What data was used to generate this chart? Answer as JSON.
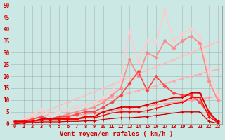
{
  "xlabel": "Vent moyen/en rafales ( km/h )",
  "bg_color": "#cce8e4",
  "grid_color": "#999999",
  "x": [
    0,
    1,
    2,
    3,
    4,
    5,
    6,
    7,
    8,
    9,
    10,
    11,
    12,
    13,
    14,
    15,
    16,
    17,
    18,
    19,
    20,
    21,
    22,
    23
  ],
  "xlim": [
    -0.5,
    23.5
  ],
  "ylim": [
    0,
    50
  ],
  "yticks": [
    0,
    5,
    10,
    15,
    20,
    25,
    30,
    35,
    40,
    45,
    50
  ],
  "lines": [
    {
      "color": "#ffaaaa",
      "lw": 0.9,
      "marker": "D",
      "ms": 2.0,
      "mew": 0.5,
      "y": [
        0,
        1,
        2,
        3,
        4,
        5,
        6,
        7,
        8,
        9,
        10,
        11,
        12,
        13,
        14,
        15,
        16,
        17,
        18,
        19,
        20,
        21,
        22,
        23
      ]
    },
    {
      "color": "#ffbbbb",
      "lw": 0.9,
      "marker": "D",
      "ms": 2.0,
      "mew": 0.5,
      "y": [
        0,
        1.5,
        3,
        4.5,
        6,
        7.5,
        9,
        10.5,
        12,
        13.5,
        15,
        16.5,
        18,
        19.5,
        21,
        22.5,
        24,
        25.5,
        27,
        28.5,
        30,
        31.5,
        33,
        34.5
      ]
    },
    {
      "color": "#ff9999",
      "lw": 0.9,
      "marker": "D",
      "ms": 2.0,
      "mew": 0.5,
      "y": [
        0,
        0.5,
        1,
        1.5,
        2,
        2.5,
        3,
        3.5,
        4,
        4.5,
        5,
        5.5,
        6,
        6.5,
        7,
        7.5,
        8,
        8.5,
        9,
        9.5,
        10,
        10.5,
        11,
        11.5
      ]
    },
    {
      "color": "#ffcccc",
      "lw": 1.2,
      "marker": "D",
      "ms": 2.5,
      "mew": 0.6,
      "y": [
        0,
        2,
        4,
        6,
        4,
        5,
        6,
        7,
        8,
        9,
        11,
        14,
        18,
        39,
        26,
        35,
        34,
        48,
        35,
        38,
        40,
        37,
        22,
        12
      ]
    },
    {
      "color": "#ff8888",
      "lw": 1.2,
      "marker": "D",
      "ms": 2.5,
      "mew": 0.6,
      "y": [
        0,
        1,
        2,
        3,
        2,
        3,
        4,
        5,
        6,
        7,
        9,
        12,
        15,
        27,
        20,
        30,
        28,
        35,
        32,
        35,
        37,
        34,
        18,
        10
      ]
    },
    {
      "color": "#ff4444",
      "lw": 1.2,
      "marker": "D",
      "ms": 2.5,
      "mew": 0.6,
      "y": [
        1,
        1,
        2,
        3,
        2,
        3,
        3,
        4,
        5,
        5,
        7,
        9,
        12,
        17,
        22,
        14,
        20,
        16,
        13,
        12,
        12,
        9,
        4,
        1
      ]
    },
    {
      "color": "#dd0000",
      "lw": 1.3,
      "marker": "+",
      "ms": 3.5,
      "mew": 0.8,
      "y": [
        1,
        1,
        1,
        2,
        2,
        2,
        2,
        2,
        3,
        3,
        5,
        6,
        7,
        7,
        7,
        8,
        9,
        10,
        11,
        11,
        13,
        13,
        5,
        1
      ]
    },
    {
      "color": "#ff0000",
      "lw": 1.0,
      "marker": "+",
      "ms": 3.0,
      "mew": 0.7,
      "y": [
        0.5,
        0.5,
        1,
        1.5,
        1.5,
        1.5,
        2,
        2,
        2.5,
        2.5,
        3.5,
        4.5,
        5,
        5,
        5,
        5.5,
        6.5,
        7.5,
        8.5,
        9,
        11,
        11,
        3,
        0.5
      ]
    },
    {
      "color": "#cc0000",
      "lw": 0.9,
      "marker": "+",
      "ms": 2.5,
      "mew": 0.6,
      "y": [
        0,
        0.3,
        0.5,
        0.8,
        0.8,
        0.8,
        1,
        1,
        1.2,
        1.2,
        1.8,
        2.2,
        2.5,
        2.5,
        2.8,
        3,
        3.5,
        4,
        4.5,
        5,
        5,
        5,
        1,
        0.2
      ]
    }
  ]
}
